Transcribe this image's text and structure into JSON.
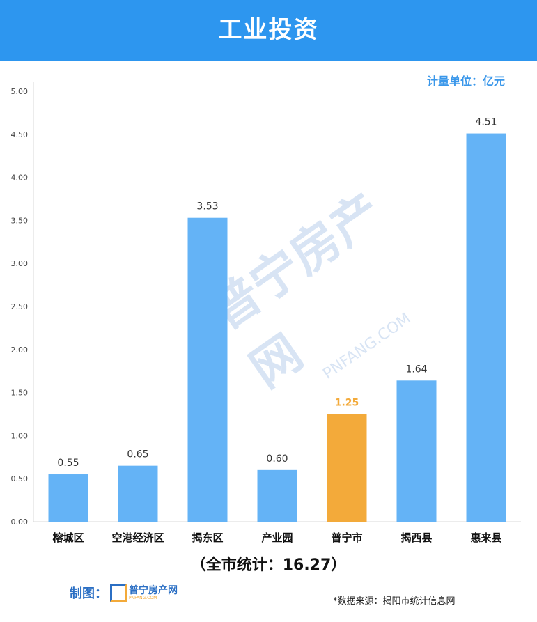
{
  "header": {
    "title": "工业投资"
  },
  "unit_label": "计量单位：亿元",
  "total_label": "（全市统计：16.27）",
  "footer": {
    "maker_label": "制图：",
    "logo_text": "普宁房产网",
    "logo_sub": "PNFANG.COM",
    "source": "*数据来源：揭阳市统计信息网"
  },
  "watermark": {
    "text": "普宁房产网",
    "sub": "PNFANG.COM"
  },
  "colors": {
    "header": "#2d96ef",
    "bar": "#64b3f6",
    "highlight": "#f3aa3a"
  },
  "chart_data": {
    "type": "bar",
    "categories": [
      "榕城区",
      "空港经济区",
      "揭东区",
      "产业园",
      "普宁市",
      "揭西县",
      "惠来县"
    ],
    "values": [
      0.55,
      0.65,
      3.53,
      0.6,
      1.25,
      1.64,
      4.51
    ],
    "highlight": "普宁市",
    "ylim": [
      0,
      5
    ],
    "yticks": [
      "0.00",
      "0.50",
      "1.00",
      "1.50",
      "2.00",
      "2.50",
      "3.00",
      "3.50",
      "4.00",
      "4.50",
      "5.00"
    ],
    "data_labels": [
      "0.55",
      "0.65",
      "3.53",
      "0.60",
      "1.25",
      "1.64",
      "4.51"
    ],
    "grid": false
  }
}
